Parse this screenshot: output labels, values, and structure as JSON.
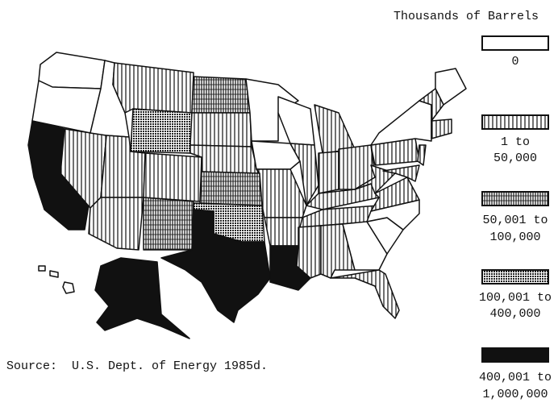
{
  "legend": {
    "title": "Thousands of Barrels",
    "items": [
      {
        "label": [
          "0"
        ]
      },
      {
        "label": [
          "1 to",
          "50,000"
        ]
      },
      {
        "label": [
          "50,001 to",
          "100,000"
        ]
      },
      {
        "label": [
          "100,001 to",
          "400,000"
        ]
      },
      {
        "label": [
          "400,001 to",
          "1,000,000"
        ]
      }
    ]
  },
  "source": "Source:  U.S. Dept. of Energy 1985d."
}
